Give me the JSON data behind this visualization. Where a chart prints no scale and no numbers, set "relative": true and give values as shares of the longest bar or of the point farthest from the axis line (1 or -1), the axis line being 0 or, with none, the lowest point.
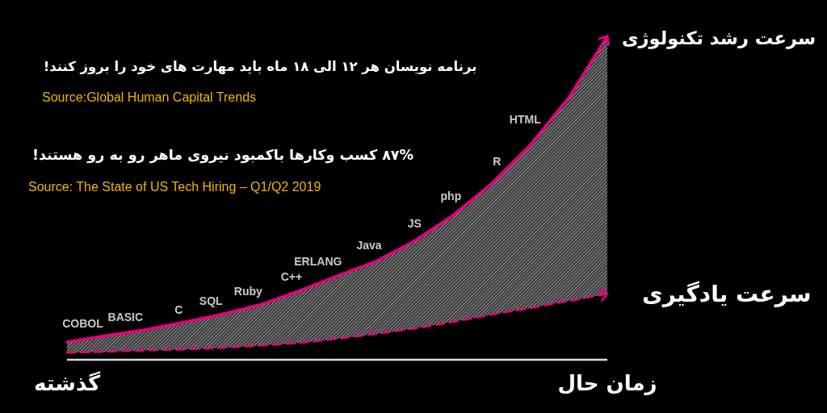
{
  "chart_data": {
    "type": "line",
    "relative": true,
    "title": "برنامه نویسان هر ۱۲ الی ۱۸ ماه باید مهارت های خود را بروز کنند!",
    "subtitle": "۸۷% کسب وکارها باکمبود نیروی ماهر رو به رو هستند!",
    "categories": [
      "گذشته",
      null,
      null,
      null,
      null,
      null,
      null,
      null,
      null,
      null,
      null,
      null,
      null,
      null,
      "زمان حال"
    ],
    "series": [
      {
        "name": "سرعت رشد تکنولوژی",
        "color": "#e6007e",
        "line_style": "solid",
        "values": [
          0.055,
          0.074,
          0.092,
          0.115,
          0.14,
          0.17,
          0.212,
          0.259,
          0.304,
          0.367,
          0.446,
          0.544,
          0.663,
          0.81,
          1
        ],
        "lower": [
          0.022,
          0.025,
          0.029,
          0.032,
          0.037,
          0.044,
          0.052,
          0.065,
          0.08,
          0.097,
          0.117,
          0.14,
          0.16,
          0.182,
          0.204
        ],
        "upper": [
          0.055,
          0.074,
          0.092,
          0.115,
          0.14,
          0.17,
          0.212,
          0.259,
          0.304,
          0.367,
          0.446,
          0.544,
          0.663,
          0.81,
          1
        ]
      },
      {
        "name": "سرعت یادگیری",
        "color": "#e6007e",
        "line_style": "dashed",
        "values": [
          0.022,
          0.025,
          0.029,
          0.032,
          0.037,
          0.044,
          0.052,
          0.065,
          0.08,
          0.097,
          0.117,
          0.14,
          0.16,
          0.182,
          0.204
        ]
      }
    ],
    "annotations": [
      "Source:Global Human Capital Trends",
      "Source: The State of US Tech Hiring – Q1/Q2 2019",
      "COBOL",
      "BASIC",
      "C",
      "SQL",
      "Ruby",
      "C++",
      "ERLANG",
      "Java",
      "JS",
      "php",
      "R",
      "HTML"
    ]
  }
}
